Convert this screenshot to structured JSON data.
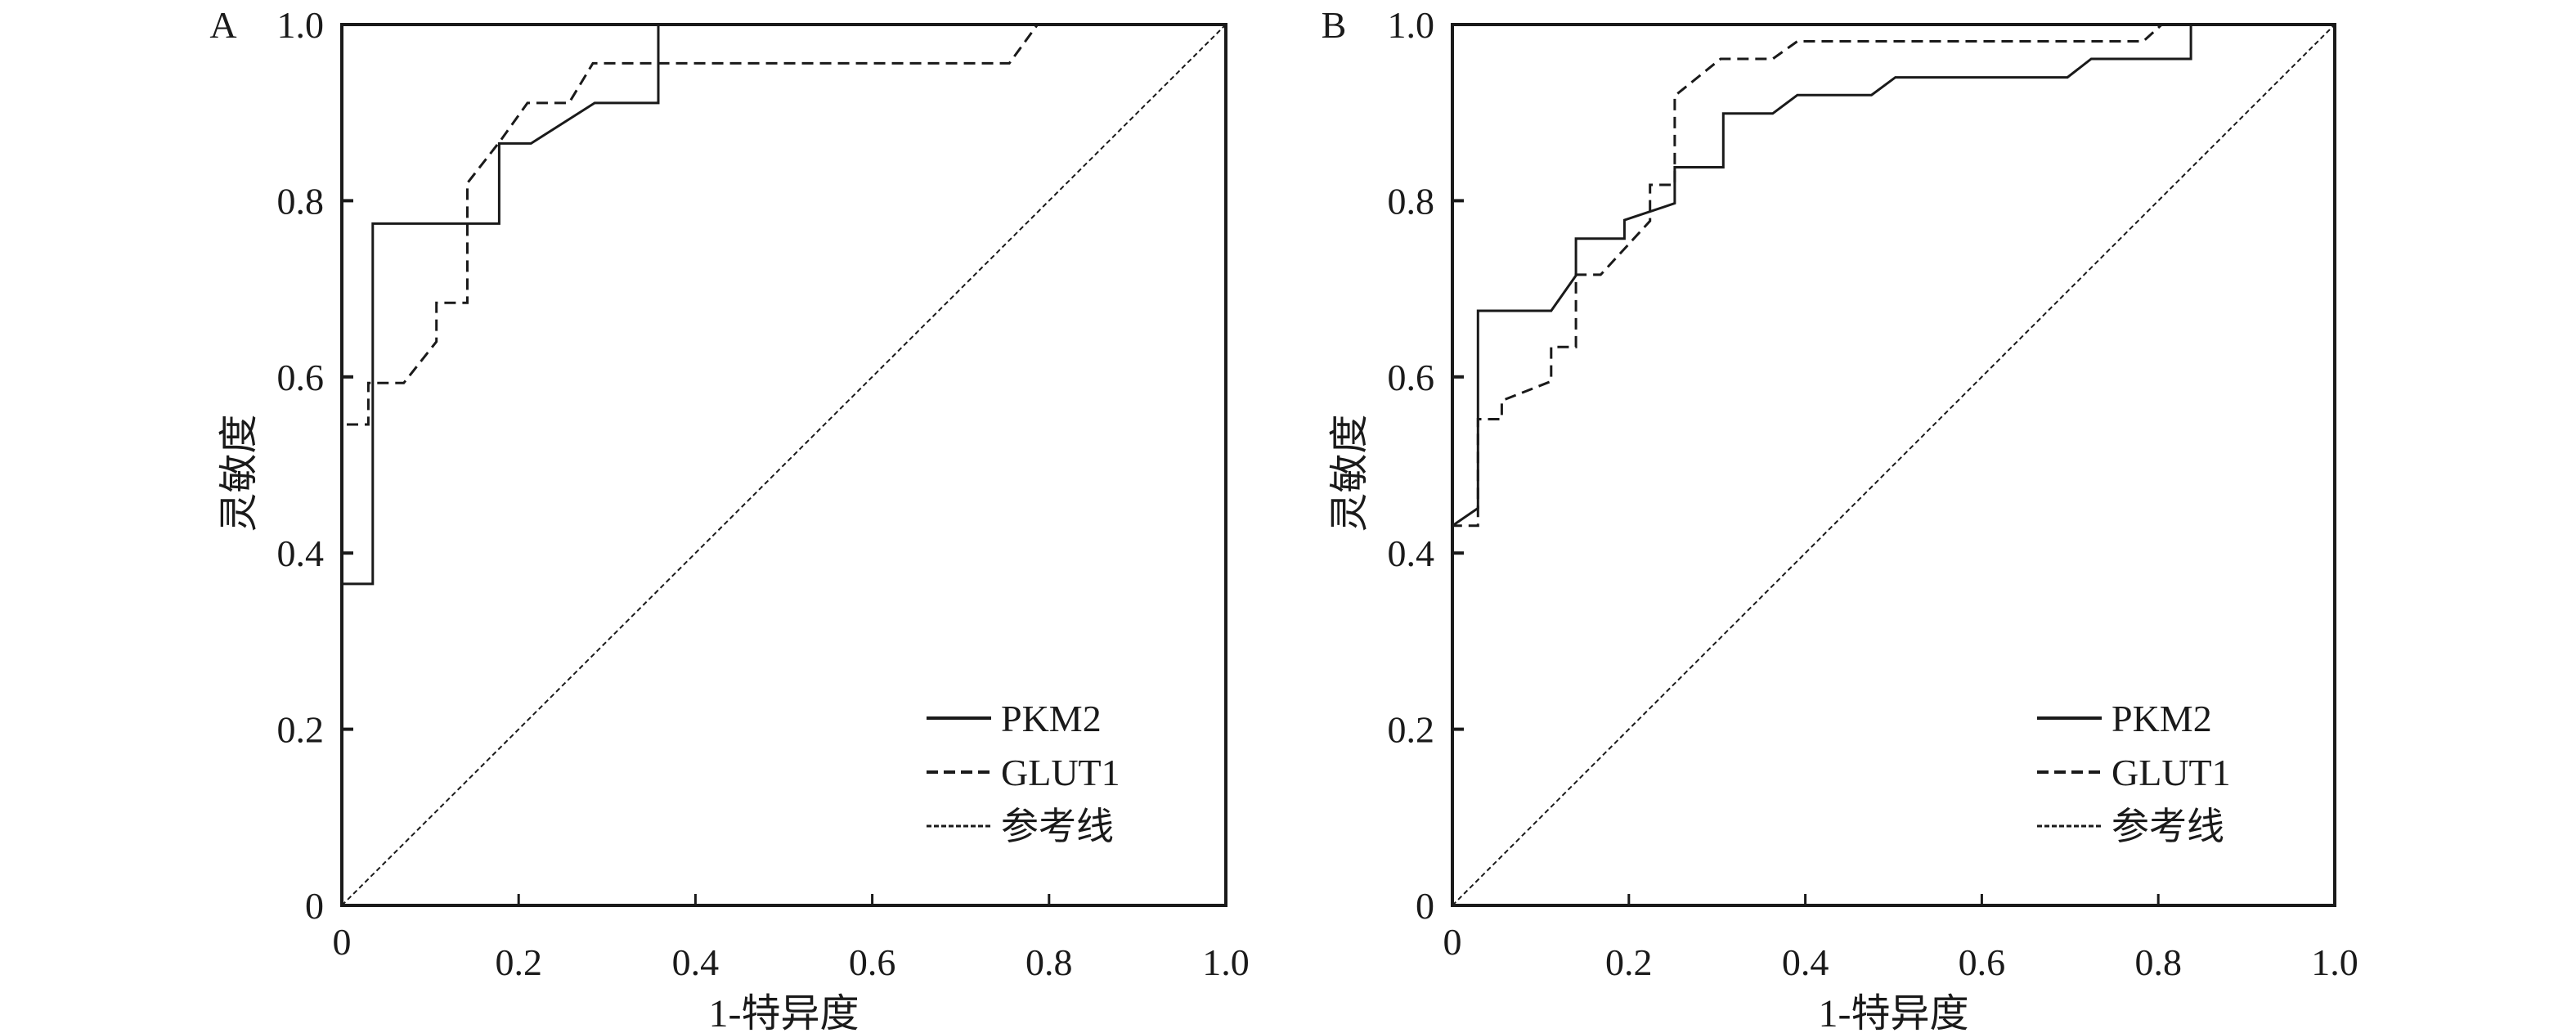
{
  "chart_data": [
    {
      "type": "line",
      "panel_label": "A",
      "xlabel": "1-特异度",
      "ylabel": "灵敏度",
      "xlim": [
        0,
        1
      ],
      "ylim": [
        0,
        1
      ],
      "x_ticks": [
        "0",
        "0.2",
        "0.4",
        "0.6",
        "0.8",
        "1.0"
      ],
      "y_ticks": [
        "0",
        "0.2",
        "0.4",
        "0.6",
        "0.8",
        "1.0"
      ],
      "grid": false,
      "legend_position": "bottom-right",
      "series": [
        {
          "name": "PKM2",
          "style": "solid",
          "points": [
            [
              0,
              0
            ],
            [
              0,
              0.365
            ],
            [
              0.035,
              0.365
            ],
            [
              0.035,
              0.774
            ],
            [
              0.178,
              0.774
            ],
            [
              0.178,
              0.865
            ],
            [
              0.214,
              0.865
            ],
            [
              0.286,
              0.911
            ],
            [
              0.358,
              0.911
            ],
            [
              0.358,
              1.0
            ],
            [
              1,
              1
            ]
          ]
        },
        {
          "name": "GLUT1",
          "style": "dashed",
          "points": [
            [
              0,
              0
            ],
            [
              0,
              0.546
            ],
            [
              0.03,
              0.546
            ],
            [
              0.03,
              0.593
            ],
            [
              0.07,
              0.593
            ],
            [
              0.107,
              0.64
            ],
            [
              0.107,
              0.684
            ],
            [
              0.142,
              0.684
            ],
            [
              0.142,
              0.82
            ],
            [
              0.18,
              0.869
            ],
            [
              0.21,
              0.911
            ],
            [
              0.257,
              0.911
            ],
            [
              0.284,
              0.956
            ],
            [
              0.755,
              0.956
            ],
            [
              0.787,
              1.0
            ],
            [
              1,
              1
            ]
          ]
        },
        {
          "name": "参考线",
          "style": "dotted",
          "points": [
            [
              0,
              0
            ],
            [
              1,
              1
            ]
          ]
        }
      ]
    },
    {
      "type": "line",
      "panel_label": "B",
      "xlabel": "1-特异度",
      "ylabel": "灵敏度",
      "xlim": [
        0,
        1
      ],
      "ylim": [
        0,
        1
      ],
      "x_ticks": [
        "0",
        "0.2",
        "0.4",
        "0.6",
        "0.8",
        "1.0"
      ],
      "y_ticks": [
        "0",
        "0.2",
        "0.4",
        "0.6",
        "0.8",
        "1.0"
      ],
      "grid": false,
      "legend_position": "bottom-right",
      "series": [
        {
          "name": "PKM2",
          "style": "solid",
          "points": [
            [
              0,
              0
            ],
            [
              0,
              0.431
            ],
            [
              0.029,
              0.451
            ],
            [
              0.029,
              0.675
            ],
            [
              0.112,
              0.675
            ],
            [
              0.14,
              0.715
            ],
            [
              0.14,
              0.757
            ],
            [
              0.195,
              0.757
            ],
            [
              0.195,
              0.778
            ],
            [
              0.252,
              0.797
            ],
            [
              0.252,
              0.838
            ],
            [
              0.307,
              0.838
            ],
            [
              0.307,
              0.899
            ],
            [
              0.363,
              0.899
            ],
            [
              0.391,
              0.92
            ],
            [
              0.475,
              0.92
            ],
            [
              0.502,
              0.94
            ],
            [
              0.697,
              0.94
            ],
            [
              0.724,
              0.961
            ],
            [
              0.837,
              0.961
            ],
            [
              0.837,
              1.0
            ],
            [
              1,
              1
            ]
          ]
        },
        {
          "name": "GLUT1",
          "style": "dashed",
          "points": [
            [
              0,
              0
            ],
            [
              0,
              0.431
            ],
            [
              0.029,
              0.431
            ],
            [
              0.029,
              0.552
            ],
            [
              0.056,
              0.552
            ],
            [
              0.056,
              0.573
            ],
            [
              0.112,
              0.595
            ],
            [
              0.112,
              0.634
            ],
            [
              0.14,
              0.634
            ],
            [
              0.14,
              0.716
            ],
            [
              0.168,
              0.716
            ],
            [
              0.224,
              0.777
            ],
            [
              0.224,
              0.818
            ],
            [
              0.252,
              0.818
            ],
            [
              0.252,
              0.919
            ],
            [
              0.304,
              0.961
            ],
            [
              0.363,
              0.961
            ],
            [
              0.391,
              0.981
            ],
            [
              0.783,
              0.981
            ],
            [
              0.804,
              1.0
            ],
            [
              1,
              1
            ]
          ]
        },
        {
          "name": "参考线",
          "style": "dotted",
          "points": [
            [
              0,
              0
            ],
            [
              1,
              1
            ]
          ]
        }
      ]
    }
  ]
}
